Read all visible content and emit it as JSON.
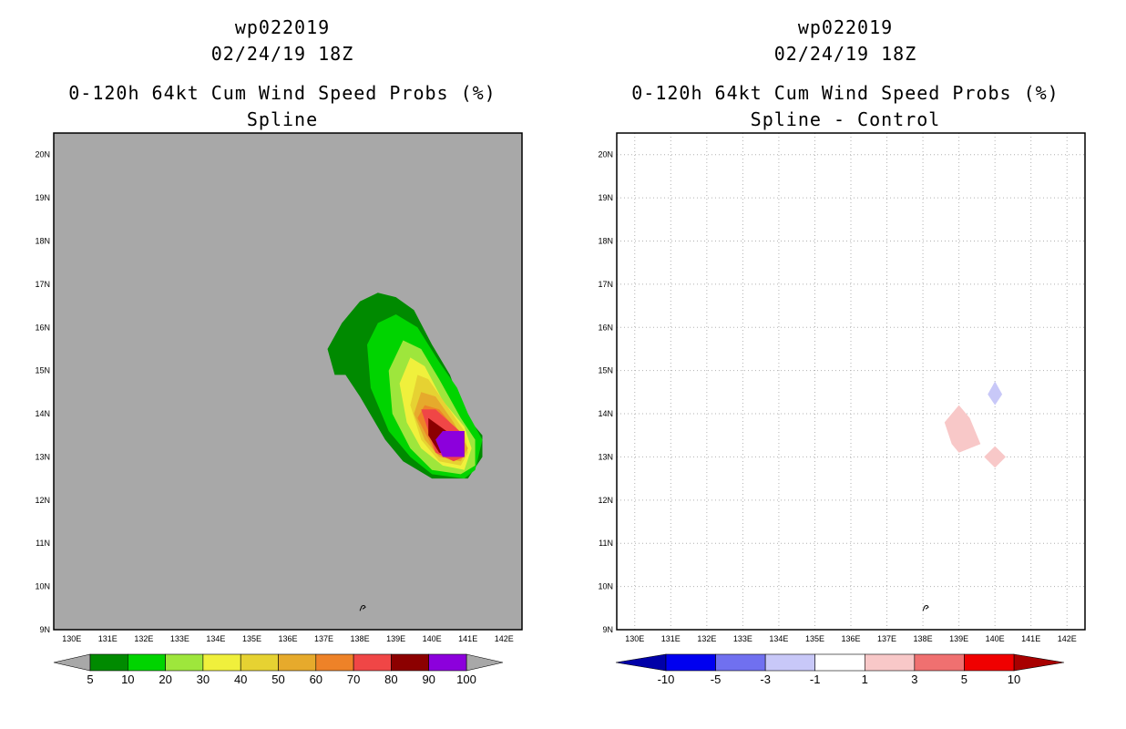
{
  "left": {
    "storm": "wp022019",
    "datetime": "02/24/19 18Z",
    "title": "0-120h 64kt Cum Wind Speed Probs (%)",
    "subtitle": "Spline"
  },
  "right": {
    "storm": "wp022019",
    "datetime": "02/24/19 18Z",
    "title": "0-120h 64kt Cum Wind Speed Probs (%)",
    "subtitle": "Spline - Control"
  },
  "chart_data": [
    {
      "type": "heatmap",
      "title": "0-120h 64kt Cum Wind Speed Probs (%)",
      "subtitle": "Spline",
      "xlim": [
        129.5,
        142.5
      ],
      "ylim": [
        9,
        20.5
      ],
      "x_ticks": [
        "130E",
        "131E",
        "132E",
        "133E",
        "134E",
        "135E",
        "136E",
        "137E",
        "138E",
        "139E",
        "140E",
        "141E",
        "142E"
      ],
      "y_ticks": [
        "9N",
        "10N",
        "11N",
        "12N",
        "13N",
        "14N",
        "15N",
        "16N",
        "17N",
        "18N",
        "19N",
        "20N"
      ],
      "background_color": "#a8a8a8",
      "colorbar": {
        "levels": [
          "5",
          "10",
          "20",
          "30",
          "40",
          "50",
          "60",
          "70",
          "80",
          "90",
          "100"
        ],
        "colors": [
          "#008a00",
          "#00d400",
          "#9ee63c",
          "#f0f03c",
          "#e6d232",
          "#e6aa2c",
          "#ee8228",
          "#f04646",
          "#8c0000",
          "#8c00dc"
        ]
      },
      "contours": [
        {
          "level": 5,
          "color": "#008a00",
          "points": [
            [
              137.1,
              15.5
            ],
            [
              137.5,
              16.1
            ],
            [
              138.0,
              16.6
            ],
            [
              138.5,
              16.8
            ],
            [
              139.0,
              16.7
            ],
            [
              139.5,
              16.4
            ],
            [
              140.0,
              15.6
            ],
            [
              140.5,
              14.9
            ],
            [
              140.9,
              14.0
            ],
            [
              141.4,
              13.5
            ],
            [
              141.4,
              13.0
            ],
            [
              141.0,
              12.5
            ],
            [
              140.0,
              12.5
            ],
            [
              139.2,
              12.9
            ],
            [
              138.7,
              13.4
            ],
            [
              138.0,
              14.4
            ],
            [
              137.6,
              14.9
            ],
            [
              137.3,
              14.9
            ]
          ]
        },
        {
          "level": 10,
          "color": "#00d400",
          "points": [
            [
              138.2,
              15.6
            ],
            [
              138.5,
              16.1
            ],
            [
              139.0,
              16.3
            ],
            [
              139.6,
              16.0
            ],
            [
              140.2,
              15.2
            ],
            [
              140.7,
              14.6
            ],
            [
              141.0,
              14.0
            ],
            [
              141.4,
              13.4
            ],
            [
              141.2,
              12.7
            ],
            [
              140.9,
              12.5
            ],
            [
              140.0,
              12.6
            ],
            [
              139.4,
              13.0
            ],
            [
              138.8,
              13.6
            ],
            [
              138.3,
              14.6
            ]
          ]
        },
        {
          "level": 20,
          "color": "#9ee63c",
          "points": [
            [
              138.8,
              15.0
            ],
            [
              139.2,
              15.7
            ],
            [
              139.7,
              15.5
            ],
            [
              140.2,
              14.8
            ],
            [
              140.8,
              13.9
            ],
            [
              141.2,
              13.4
            ],
            [
              141.2,
              12.8
            ],
            [
              140.8,
              12.6
            ],
            [
              140.0,
              12.7
            ],
            [
              139.4,
              13.2
            ],
            [
              138.9,
              14.0
            ]
          ]
        },
        {
          "level": 30,
          "color": "#f0f03c",
          "points": [
            [
              139.1,
              14.7
            ],
            [
              139.4,
              15.3
            ],
            [
              139.8,
              15.1
            ],
            [
              140.3,
              14.3
            ],
            [
              140.9,
              13.7
            ],
            [
              141.1,
              13.2
            ],
            [
              140.9,
              12.7
            ],
            [
              140.3,
              12.8
            ],
            [
              139.7,
              13.2
            ],
            [
              139.3,
              13.8
            ]
          ]
        },
        {
          "level": 40,
          "color": "#e6d232",
          "points": [
            [
              139.4,
              14.2
            ],
            [
              139.6,
              14.9
            ],
            [
              139.9,
              14.8
            ],
            [
              140.4,
              14.2
            ],
            [
              140.9,
              13.6
            ],
            [
              141.0,
              13.1
            ],
            [
              140.8,
              12.8
            ],
            [
              140.2,
              12.9
            ],
            [
              139.7,
              13.4
            ]
          ]
        },
        {
          "level": 50,
          "color": "#e6aa2c",
          "points": [
            [
              139.5,
              14.0
            ],
            [
              139.7,
              14.5
            ],
            [
              140.1,
              14.4
            ],
            [
              140.6,
              13.8
            ],
            [
              141.0,
              13.2
            ],
            [
              140.8,
              12.9
            ],
            [
              140.2,
              13.0
            ],
            [
              139.8,
              13.4
            ]
          ]
        },
        {
          "level": 60,
          "color": "#ee8228",
          "points": [
            [
              139.6,
              13.9
            ],
            [
              139.8,
              14.2
            ],
            [
              140.2,
              14.1
            ],
            [
              140.7,
              13.6
            ],
            [
              140.9,
              13.2
            ],
            [
              140.6,
              13.0
            ],
            [
              140.1,
              13.1
            ]
          ]
        },
        {
          "level": 70,
          "color": "#f04646",
          "points": [
            [
              139.7,
              14.1
            ],
            [
              140.1,
              14.1
            ],
            [
              140.5,
              13.8
            ],
            [
              140.9,
              13.5
            ],
            [
              140.9,
              13.0
            ],
            [
              140.6,
              12.9
            ],
            [
              140.1,
              13.1
            ]
          ]
        },
        {
          "level": 80,
          "color": "#8c0000",
          "points": [
            [
              139.9,
              13.9
            ],
            [
              140.4,
              13.6
            ],
            [
              140.9,
              13.6
            ],
            [
              140.9,
              13.0
            ],
            [
              140.2,
              13.1
            ],
            [
              139.9,
              13.5
            ]
          ]
        },
        {
          "level": 90,
          "color": "#8c00dc",
          "points": [
            [
              140.1,
              13.4
            ],
            [
              140.3,
              13.6
            ],
            [
              140.9,
              13.6
            ],
            [
              140.9,
              13.0
            ],
            [
              140.3,
              13.0
            ]
          ]
        }
      ],
      "coast_marker": [
        138.05,
        9.5
      ]
    },
    {
      "type": "heatmap",
      "title": "0-120h 64kt Cum Wind Speed Probs (%)",
      "subtitle": "Spline - Control",
      "xlim": [
        129.5,
        142.5
      ],
      "ylim": [
        9,
        20.5
      ],
      "x_ticks": [
        "130E",
        "131E",
        "132E",
        "133E",
        "134E",
        "135E",
        "136E",
        "137E",
        "138E",
        "139E",
        "140E",
        "141E",
        "142E"
      ],
      "y_ticks": [
        "9N",
        "10N",
        "11N",
        "12N",
        "13N",
        "14N",
        "15N",
        "16N",
        "17N",
        "18N",
        "19N",
        "20N"
      ],
      "grid": true,
      "background_color": "#ffffff",
      "colorbar": {
        "levels": [
          "-10",
          "-5",
          "-3",
          "-1",
          "1",
          "3",
          "5",
          "10"
        ],
        "colors": [
          "#0000a8",
          "#0000f0",
          "#7070f0",
          "#c8c8f8",
          "#ffffff",
          "#f8c8c8",
          "#f07070",
          "#f00000",
          "#a80000"
        ]
      },
      "contours": [
        {
          "level": "1 to 3",
          "color": "#f8c8c8",
          "points": [
            [
              138.6,
              13.8
            ],
            [
              139.0,
              14.2
            ],
            [
              139.3,
              13.9
            ],
            [
              139.6,
              13.3
            ],
            [
              139.0,
              13.1
            ],
            [
              138.8,
              13.3
            ]
          ]
        },
        {
          "level": "1 to 3",
          "color": "#f8c8c8",
          "points": [
            [
              140.0,
              13.25
            ],
            [
              140.3,
              13.0
            ],
            [
              140.0,
              12.75
            ],
            [
              139.7,
              13.0
            ]
          ]
        },
        {
          "level": "-3 to -1",
          "color": "#c8c8f8",
          "points": [
            [
              140.0,
              14.75
            ],
            [
              140.2,
              14.45
            ],
            [
              140.0,
              14.2
            ],
            [
              139.8,
              14.45
            ]
          ]
        }
      ],
      "coast_marker": [
        138.05,
        9.5
      ]
    }
  ]
}
